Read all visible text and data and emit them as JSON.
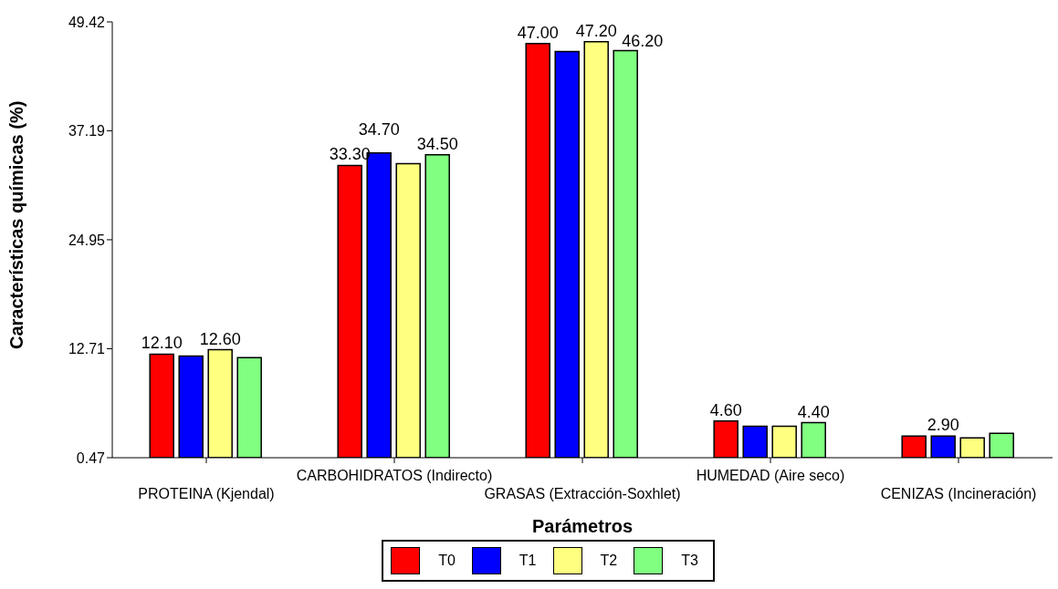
{
  "chart_data": {
    "type": "bar",
    "xlabel": "Parámetros",
    "ylabel": "Características químicas (%)",
    "categories": [
      "PROTEINA (Kjendal)",
      "CARBOHIDRATOS (Indirecto)",
      "GRASAS (Extracción-Soxhlet)",
      "HUMEDAD (Aire seco)",
      "CENIZAS (Incineración)"
    ],
    "series": [
      {
        "name": "T0",
        "color": "#ff0000",
        "values": [
          12.1,
          33.3,
          47.0,
          4.6,
          2.9
        ],
        "value_labels": [
          "12.10",
          "33.30",
          "47.00",
          "4.60",
          null
        ]
      },
      {
        "name": "T1",
        "color": "#0000ff",
        "values": [
          11.9,
          34.7,
          46.1,
          4.0,
          2.9
        ],
        "value_labels": [
          null,
          "34.70",
          null,
          null,
          "2.90"
        ]
      },
      {
        "name": "T2",
        "color": "#ffff80",
        "values": [
          12.6,
          33.5,
          47.2,
          4.0,
          2.7
        ],
        "value_labels": [
          "12.60",
          null,
          "47.20",
          null,
          null
        ]
      },
      {
        "name": "T3",
        "color": "#80ff80",
        "values": [
          11.7,
          34.5,
          46.2,
          4.4,
          3.2
        ],
        "value_labels": [
          null,
          "34.50",
          "46.20",
          "4.40",
          null
        ]
      }
    ],
    "ylim": [
      0.47,
      49.42
    ],
    "yticks": [
      0.47,
      12.71,
      24.95,
      37.19,
      49.42
    ],
    "grid": false,
    "legend": "bottom"
  }
}
